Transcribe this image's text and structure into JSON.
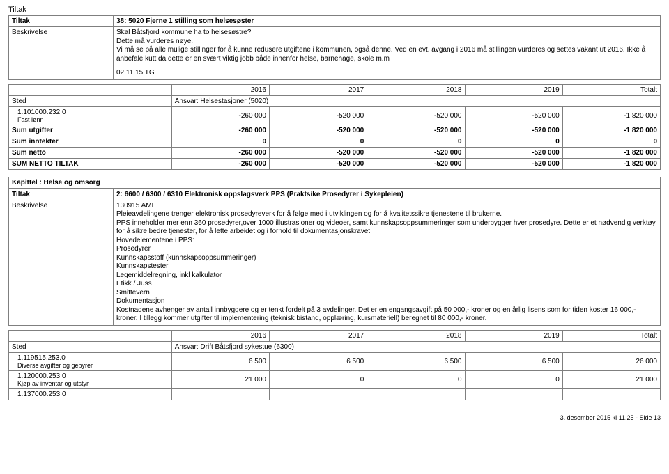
{
  "page": {
    "title": "Tiltak",
    "footer": "3. desember 2015 kl 11.25 - Side 13"
  },
  "section1": {
    "tiltak_label": "Tiltak",
    "tiltak_value": "38: 5020 Fjerne 1 stilling som helsesøster",
    "besk_label": "Beskrivelse",
    "besk_p1": "Skal Båtsfjord kommune ha to helsesøstre?",
    "besk_p2": "Dette må vurderes nøye.",
    "besk_p3": "Vi må se på alle mulige stillinger for å kunne redusere utgiftene i kommunen, også denne. Ved en evt. avgang i 2016 må stillingen vurderes og settes vakant ut 2016. Ikke å anbefale kutt da dette er en svært viktig jobb både innenfor helse, barnehage, skole m.m",
    "besk_p4": "02.11.15 TG"
  },
  "table1": {
    "headers": [
      "",
      "2016",
      "2017",
      "2018",
      "2019",
      "Totalt"
    ],
    "sted_label": "Sted",
    "ansvar": "Ansvar: Helsestasjoner (5020)",
    "item_code": "1.101000.232.0",
    "item_name": "Fast lønn",
    "item_vals": [
      "-260 000",
      "-520 000",
      "-520 000",
      "-520 000",
      "-1 820 000"
    ],
    "sum_utgifter_label": "Sum utgifter",
    "sum_utgifter": [
      "-260 000",
      "-520 000",
      "-520 000",
      "-520 000",
      "-1 820 000"
    ],
    "sum_inntekter_label": "Sum inntekter",
    "sum_inntekter": [
      "0",
      "0",
      "0",
      "0",
      "0"
    ],
    "sum_netto_label": "Sum netto",
    "sum_netto": [
      "-260 000",
      "-520 000",
      "-520 000",
      "-520 000",
      "-1 820 000"
    ],
    "sum_netto_tiltak_label": "SUM NETTO TILTAK",
    "sum_netto_tiltak": [
      "-260 000",
      "-520 000",
      "-520 000",
      "-520 000",
      "-1 820 000"
    ]
  },
  "chapter_label": "Kapittel : Helse og omsorg",
  "section2": {
    "tiltak_label": "Tiltak",
    "tiltak_value": "2: 6600 / 6300 / 6310 Elektronisk oppslagsverk PPS (Praktsike Prosedyrer i Sykepleien)",
    "besk_label": "Beskrivelse",
    "besk_lines": [
      "130915 AML",
      "Pleieavdelingene trenger elektronisk prosedyreverk for å følge med i utviklingen og for å kvalitetssikre tjenestene til brukerne.",
      "PPS inneholder mer enn 360 prosedyrer,over 1000 illustrasjoner og videoer, samt kunnskapsoppsummeringer som underbygger hver prosedyre. Dette er et nødvendig verktøy for å sikre bedre tjenester, for å lette arbeidet og i forhold til dokumentasjonskravet.",
      "Hovedelementene i PPS:",
      " Prosedyrer",
      " Kunnskapsstoff (kunnskapsoppsummeringer)",
      " Kunnskapstester",
      " Legemiddelregning, inkl kalkulator",
      " Etikk / Juss",
      " Smittevern",
      " Dokumentasjon",
      "Kostnadene avhenger av antall innbyggere og er tenkt fordelt på 3 avdelinger. Det er en engangsavgift på 50 000,- kroner og en årlig lisens som for tiden koster 16 000,- kroner. I tillegg kommer utgifter til implementering (teknisk bistand, opplæring, kursmateriell) beregnet til 80 000,- kroner."
    ]
  },
  "table2": {
    "headers": [
      "",
      "2016",
      "2017",
      "2018",
      "2019",
      "Totalt"
    ],
    "sted_label": "Sted",
    "ansvar": "Ansvar: Drift Båtsfjord sykestue (6300)",
    "items": [
      {
        "code": "1.119515.253.0",
        "name": "Diverse avgifter og gebyrer",
        "vals": [
          "6 500",
          "6 500",
          "6 500",
          "6 500",
          "26 000"
        ]
      },
      {
        "code": "1.120000.253.0",
        "name": "Kjøp av inventar og utstyr",
        "vals": [
          "21 000",
          "0",
          "0",
          "0",
          "21 000"
        ]
      },
      {
        "code": "1.137000.253.0",
        "name": "",
        "vals": [
          "",
          "",
          "",
          "",
          ""
        ]
      }
    ]
  }
}
